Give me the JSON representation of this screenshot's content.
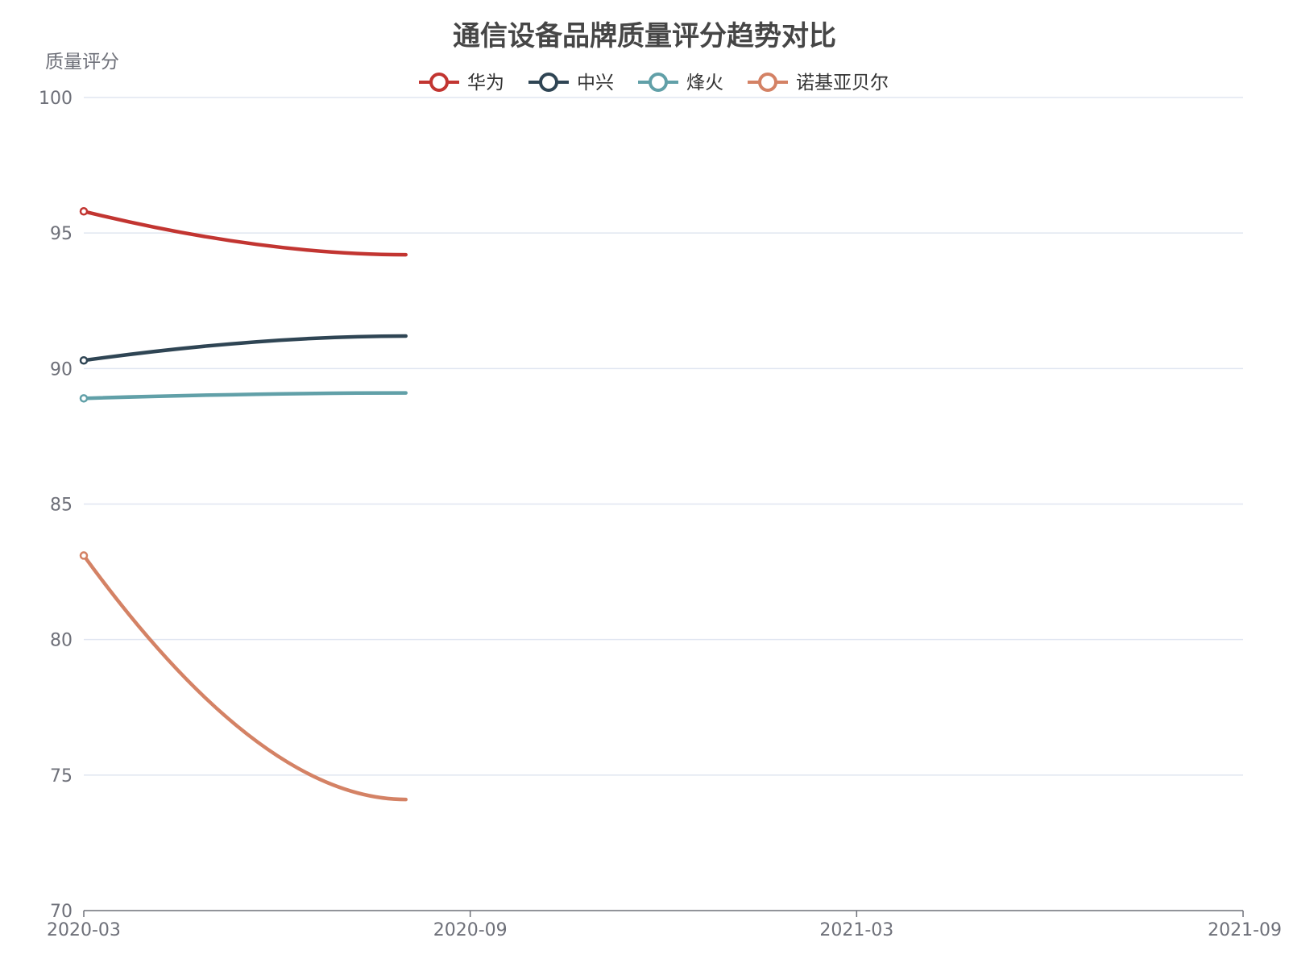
{
  "chart_data": {
    "type": "line",
    "title": "通信设备品牌质量评分趋势对比",
    "ylabel": "质量评分",
    "xlabel": "",
    "x_ticks": [
      "2020-03",
      "2020-09",
      "2021-03",
      "2021-09"
    ],
    "xlim": [
      "2020-03",
      "2021-09"
    ],
    "ylim": [
      70,
      100
    ],
    "y_ticks": [
      70,
      75,
      80,
      85,
      90,
      95,
      100
    ],
    "y_tick_labels": [
      "70",
      "75",
      "80",
      "85",
      "90",
      "95",
      "100"
    ],
    "grid": true,
    "legend_position": "top-center",
    "x": [
      "2020-03",
      "2020-08"
    ],
    "series": [
      {
        "name": "华为",
        "color": "#c23531",
        "values": [
          95.8,
          94.2
        ]
      },
      {
        "name": "中兴",
        "color": "#2f4554",
        "values": [
          90.3,
          91.2
        ]
      },
      {
        "name": "烽火",
        "color": "#61a0a8",
        "values": [
          88.9,
          89.1
        ]
      },
      {
        "name": "诺基亚贝尔",
        "color": "#d48265",
        "values": [
          83.1,
          74.1
        ]
      }
    ]
  }
}
